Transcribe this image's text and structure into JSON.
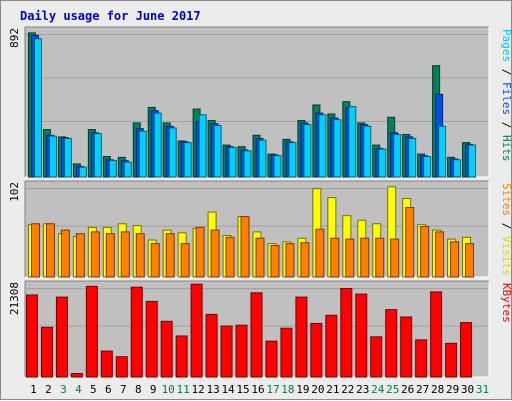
{
  "title": "Daily usage for June 2017",
  "colors": {
    "hits": "#00805c",
    "files": "#0050e8",
    "pages": "#00d0ff",
    "visits": "#ffff00",
    "sites": "#ff8000",
    "kbytes": "#ff0000",
    "panel_bg": "#c0c0c0",
    "frame_bg": "#ececec",
    "weekday_label": "#000000",
    "weekend_label": "#008040"
  },
  "chart_data": [
    {
      "type": "bar",
      "panel": "hits-files-pages",
      "ylabel_parts": [
        {
          "text": "Pages",
          "color": "#00c8ff"
        },
        {
          "text": " / ",
          "color": "#000000"
        },
        {
          "text": "Files",
          "color": "#0050e8"
        },
        {
          "text": " / ",
          "color": "#000000"
        },
        {
          "text": "Hits",
          "color": "#00805c"
        }
      ],
      "max_label": "892",
      "ylim": [
        0,
        892
      ],
      "categories": [
        "1",
        "2",
        "3",
        "4",
        "5",
        "6",
        "7",
        "8",
        "9",
        "10",
        "11",
        "12",
        "13",
        "14",
        "15",
        "16",
        "17",
        "18",
        "19",
        "20",
        "21",
        "22",
        "23",
        "24",
        "25",
        "26",
        "27",
        "28",
        "29",
        "30"
      ],
      "series": [
        {
          "name": "Hits",
          "values": [
            880,
            290,
            245,
            80,
            290,
            125,
            120,
            330,
            425,
            330,
            220,
            415,
            345,
            195,
            185,
            255,
            140,
            230,
            345,
            440,
            385,
            460,
            330,
            195,
            365,
            260,
            140,
            680,
            120,
            210
          ]
        },
        {
          "name": "Files",
          "values": [
            865,
            255,
            240,
            65,
            270,
            105,
            100,
            295,
            405,
            310,
            215,
            335,
            325,
            185,
            165,
            235,
            135,
            215,
            330,
            390,
            360,
            420,
            320,
            175,
            270,
            245,
            130,
            505,
            110,
            200
          ]
        },
        {
          "name": "Pages",
          "values": [
            845,
            250,
            235,
            60,
            265,
            100,
            90,
            280,
            390,
            300,
            210,
            380,
            315,
            180,
            160,
            225,
            130,
            210,
            320,
            380,
            350,
            430,
            310,
            170,
            260,
            235,
            125,
            310,
            105,
            195
          ]
        }
      ]
    },
    {
      "type": "bar",
      "panel": "visits-sites",
      "ylabel_parts": [
        {
          "text": "Sites",
          "color": "#ff8000"
        },
        {
          "text": " / ",
          "color": "#000000"
        },
        {
          "text": "Visits",
          "color": "#d8d800"
        }
      ],
      "max_label": "102",
      "ylim": [
        0,
        102
      ],
      "categories": [
        "1",
        "2",
        "3",
        "4",
        "5",
        "6",
        "7",
        "8",
        "9",
        "10",
        "11",
        "12",
        "13",
        "14",
        "15",
        "16",
        "17",
        "18",
        "19",
        "20",
        "21",
        "22",
        "23",
        "24",
        "25",
        "26",
        "27",
        "28",
        "29",
        "30"
      ],
      "series": [
        {
          "name": "Visits",
          "values": [
            58,
            59,
            48,
            45,
            55,
            55,
            59,
            57,
            41,
            52,
            49,
            54,
            72,
            46,
            67,
            50,
            37,
            39,
            43,
            98,
            88,
            68,
            63,
            59,
            100,
            87,
            58,
            52,
            42,
            44
          ]
        },
        {
          "name": "Sites",
          "values": [
            59,
            59,
            52,
            48,
            50,
            48,
            50,
            48,
            37,
            48,
            37,
            55,
            52,
            44,
            67,
            43,
            35,
            37,
            38,
            53,
            43,
            42,
            43,
            43,
            42,
            77,
            56,
            50,
            39,
            37
          ]
        }
      ]
    },
    {
      "type": "bar",
      "panel": "kbytes",
      "ylabel_parts": [
        {
          "text": "KBytes",
          "color": "#ff0000"
        }
      ],
      "max_label": "21308",
      "ylim": [
        0,
        21308
      ],
      "categories": [
        "1",
        "2",
        "3",
        "4",
        "5",
        "6",
        "7",
        "8",
        "9",
        "10",
        "11",
        "12",
        "13",
        "14",
        "15",
        "16",
        "17",
        "18",
        "19",
        "20",
        "21",
        "22",
        "23",
        "24",
        "25",
        "26",
        "27",
        "28",
        "29",
        "30"
      ],
      "series": [
        {
          "name": "KBytes",
          "values": [
            19000,
            11500,
            18500,
            800,
            21000,
            6000,
            4700,
            20800,
            17500,
            12900,
            9500,
            21500,
            14500,
            11800,
            12000,
            19500,
            8300,
            11300,
            18500,
            12400,
            14300,
            20500,
            19200,
            9300,
            15600,
            13900,
            8600,
            19700,
            7800,
            12600
          ]
        }
      ]
    }
  ],
  "x_axis": {
    "labels": [
      "1",
      "2",
      "3",
      "4",
      "5",
      "6",
      "7",
      "8",
      "9",
      "10",
      "11",
      "12",
      "13",
      "14",
      "15",
      "16",
      "17",
      "18",
      "19",
      "20",
      "21",
      "22",
      "23",
      "24",
      "25",
      "26",
      "27",
      "28",
      "29",
      "30",
      "31"
    ],
    "weekend": [
      "3",
      "4",
      "10",
      "11",
      "17",
      "18",
      "24",
      "25",
      "31"
    ]
  }
}
